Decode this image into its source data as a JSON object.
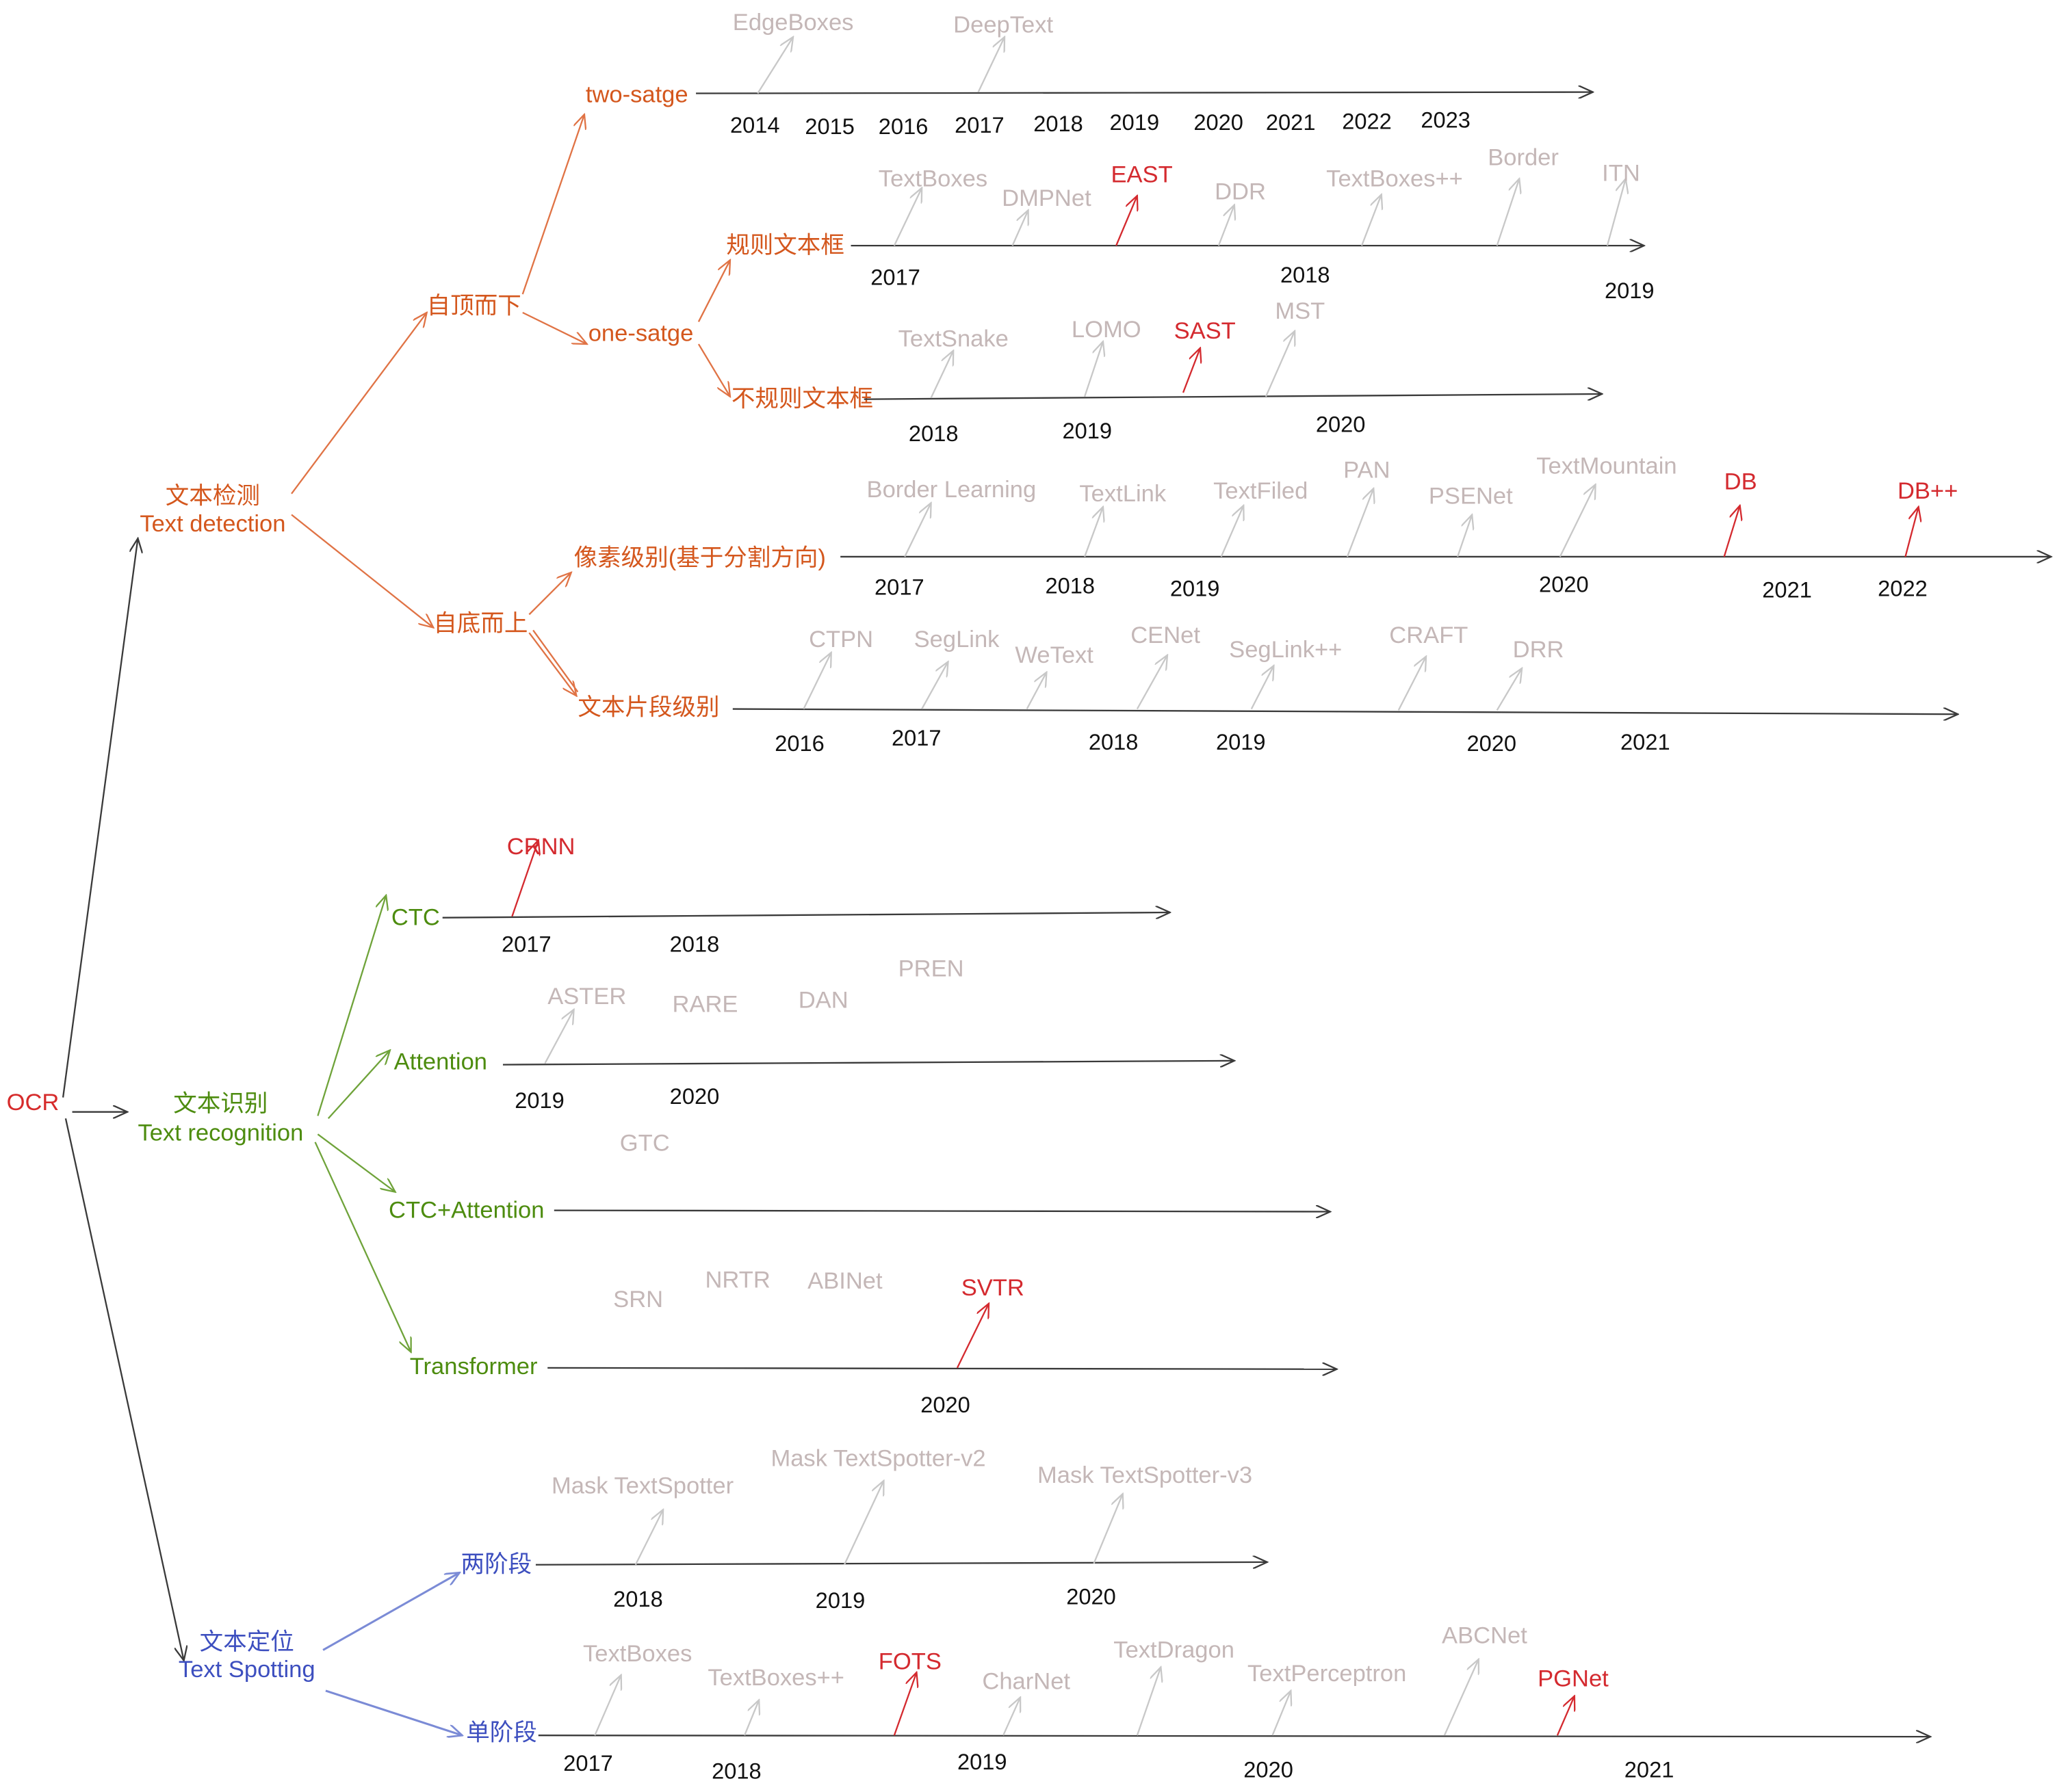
{
  "root": {
    "label": "OCR"
  },
  "colors": {
    "root": "#d62b2b",
    "detection": "#d4571d",
    "detection_arrow": "#e07345",
    "recognition": "#4d8c0f",
    "recognition_arrow": "#6fa33a",
    "spotting": "#3d4fbf",
    "spotting_arrow": "#7b8bd6",
    "highlight": "#d42a2f",
    "method": "#c4b7b7",
    "method_arrow": "#c8c8c8",
    "year": "#111111",
    "axis": "#3a3a3a"
  },
  "detection": {
    "title_cn": "文本检测",
    "title_en": "Text detection",
    "top_down": {
      "label": "自顶而下",
      "two_stage": {
        "label": "two-satge",
        "years": [
          "2014",
          "2015",
          "2016",
          "2017",
          "2018",
          "2019",
          "2020",
          "2021",
          "2022",
          "2023"
        ],
        "methods": [
          {
            "name": "EdgeBoxes",
            "highlight": false
          },
          {
            "name": "DeepText",
            "highlight": false
          }
        ]
      },
      "one_stage": {
        "label": "one-satge",
        "regular": {
          "label": "规则文本框",
          "years": [
            "2017",
            "2018",
            "2019"
          ],
          "methods": [
            {
              "name": "TextBoxes",
              "highlight": false
            },
            {
              "name": "DMPNet",
              "highlight": false
            },
            {
              "name": "EAST",
              "highlight": true
            },
            {
              "name": "DDR",
              "highlight": false
            },
            {
              "name": "TextBoxes++",
              "highlight": false
            },
            {
              "name": "Border",
              "highlight": false
            },
            {
              "name": "ITN",
              "highlight": false
            }
          ]
        },
        "irregular": {
          "label": "不规则文本框",
          "years": [
            "2018",
            "2019",
            "2020"
          ],
          "methods": [
            {
              "name": "TextSnake",
              "highlight": false
            },
            {
              "name": "LOMO",
              "highlight": false
            },
            {
              "name": "SAST",
              "highlight": true
            },
            {
              "name": "MST",
              "highlight": false
            }
          ]
        }
      }
    },
    "bottom_up": {
      "label": "自底而上",
      "pixel": {
        "label": "像素级别(基于分割方向)",
        "years": [
          "2017",
          "2018",
          "2019",
          "2020",
          "2021",
          "2022"
        ],
        "methods": [
          {
            "name": "Border Learning",
            "highlight": false
          },
          {
            "name": "TextLink",
            "highlight": false
          },
          {
            "name": "TextFiled",
            "highlight": false
          },
          {
            "name": "PAN",
            "highlight": false
          },
          {
            "name": "PSENet",
            "highlight": false
          },
          {
            "name": "TextMountain",
            "highlight": false
          },
          {
            "name": "DB",
            "highlight": true
          },
          {
            "name": "DB++",
            "highlight": true
          }
        ]
      },
      "segment": {
        "label": "文本片段级别",
        "years": [
          "2016",
          "2017",
          "2018",
          "2019",
          "2020",
          "2021"
        ],
        "methods": [
          {
            "name": "CTPN",
            "highlight": false
          },
          {
            "name": "SegLink",
            "highlight": false
          },
          {
            "name": "WeText",
            "highlight": false
          },
          {
            "name": "CENet",
            "highlight": false
          },
          {
            "name": "SegLink++",
            "highlight": false
          },
          {
            "name": "CRAFT",
            "highlight": false
          },
          {
            "name": "DRR",
            "highlight": false
          }
        ]
      }
    }
  },
  "recognition": {
    "title_cn": "文本识别",
    "title_en": "Text recognition",
    "ctc": {
      "label": "CTC",
      "years": [
        "2017",
        "2018"
      ],
      "methods": [
        {
          "name": "CRNN",
          "highlight": true
        }
      ]
    },
    "attention": {
      "label": "Attention",
      "years": [
        "2019",
        "2020"
      ],
      "methods": [
        {
          "name": "ASTER",
          "highlight": false
        },
        {
          "name": "RARE",
          "highlight": false
        },
        {
          "name": "DAN",
          "highlight": false
        },
        {
          "name": "PREN",
          "highlight": false
        }
      ]
    },
    "ctc_attention": {
      "label": "CTC+Attention",
      "methods": [
        {
          "name": "GTC",
          "highlight": false
        }
      ]
    },
    "transformer": {
      "label": "Transformer",
      "years": [
        "2020"
      ],
      "methods": [
        {
          "name": "SRN",
          "highlight": false
        },
        {
          "name": "NRTR",
          "highlight": false
        },
        {
          "name": "ABINet",
          "highlight": false
        },
        {
          "name": "SVTR",
          "highlight": true
        }
      ]
    }
  },
  "spotting": {
    "title_cn": "文本定位",
    "title_en": "Text Spotting",
    "two_stage": {
      "label": "两阶段",
      "years": [
        "2018",
        "2019",
        "2020"
      ],
      "methods": [
        {
          "name": "Mask TextSpotter",
          "highlight": false
        },
        {
          "name": "Mask TextSpotter-v2",
          "highlight": false
        },
        {
          "name": "Mask TextSpotter-v3",
          "highlight": false
        }
      ]
    },
    "one_stage": {
      "label": "单阶段",
      "years": [
        "2017",
        "2018",
        "2019",
        "2020",
        "2021"
      ],
      "methods": [
        {
          "name": "TextBoxes",
          "highlight": false
        },
        {
          "name": "TextBoxes++",
          "highlight": false
        },
        {
          "name": "FOTS",
          "highlight": true
        },
        {
          "name": "CharNet",
          "highlight": false
        },
        {
          "name": "TextDragon",
          "highlight": false
        },
        {
          "name": "TextPerceptron",
          "highlight": false
        },
        {
          "name": "ABCNet",
          "highlight": false
        },
        {
          "name": "PGNet",
          "highlight": true
        }
      ]
    }
  }
}
